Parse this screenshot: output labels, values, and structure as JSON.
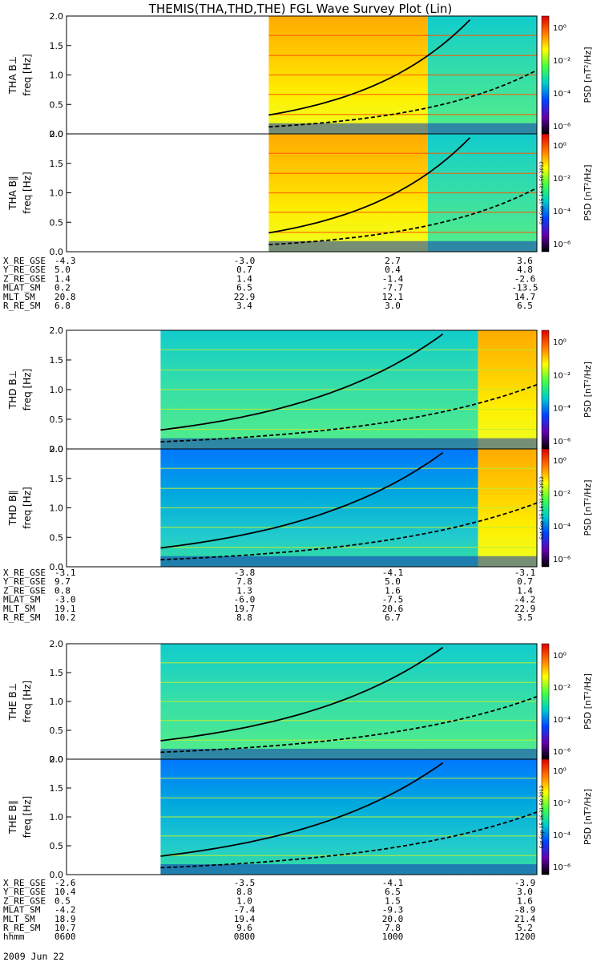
{
  "title": "THEMIS(THA,THD,THE) FGL Wave Survey Plot (Lin)",
  "chart_data": {
    "type": "heatmap",
    "title": "THEMIS(THA,THD,THE) FGL Wave Survey Plot (Lin)",
    "ylabel": "freq [Hz]",
    "ylim": [
      0,
      2.0
    ],
    "yticks": [
      "0.0",
      "0.5",
      "1.0",
      "1.5",
      "2.0"
    ],
    "colorbar_label": "PSD [nT²/Hz]",
    "colorbar_ticks": [
      "10⁰",
      "10⁻²",
      "10⁻⁴",
      "10⁻⁶"
    ],
    "colorbar_colors": [
      "#dd0000",
      "#ff7700",
      "#ffff00",
      "#44ff44",
      "#00cccc",
      "#0044ff",
      "#6600aa",
      "#000000"
    ],
    "stamp": "Sat Sep 15 16:31:50 2012",
    "panels": [
      {
        "probe": "THA",
        "component": "THA B⊥",
        "data_start_frac": 0.43,
        "band_change_frac": 0.768,
        "level": "high"
      },
      {
        "probe": "THA",
        "component": "THA B∥",
        "data_start_frac": 0.43,
        "band_change_frac": 0.768,
        "level": "high"
      },
      {
        "probe": "THD",
        "component": "THD B⊥",
        "data_start_frac": 0.2,
        "band_change_frac": 0.875,
        "level": "mid"
      },
      {
        "probe": "THD",
        "component": "THD B∥",
        "data_start_frac": 0.2,
        "band_change_frac": 0.875,
        "level": "low"
      },
      {
        "probe": "THE",
        "component": "THE B⊥",
        "data_start_frac": 0.2,
        "band_change_frac": 1.0,
        "level": "mid"
      },
      {
        "probe": "THE",
        "component": "THE B∥",
        "data_start_frac": 0.2,
        "band_change_frac": 1.0,
        "level": "low"
      }
    ],
    "ephemeris": [
      {
        "probe": "THA",
        "rows": [
          {
            "label": "X_RE_GSE",
            "values": [
              "-4.3",
              "-3.0",
              "2.7",
              "3.6"
            ]
          },
          {
            "label": "Y_RE_GSE",
            "values": [
              "5.0",
              "0.7",
              "0.4",
              "4.8"
            ]
          },
          {
            "label": "Z_RE_GSE",
            "values": [
              "1.4",
              "1.4",
              "-1.4",
              "-2.6"
            ]
          },
          {
            "label": "MLAT_SM",
            "values": [
              "0.2",
              "6.5",
              "-7.7",
              "-13.5"
            ]
          },
          {
            "label": "MLT_SM",
            "values": [
              "20.8",
              "22.9",
              "12.1",
              "14.7"
            ]
          },
          {
            "label": "R_RE_SM",
            "values": [
              "6.8",
              "3.4",
              "3.0",
              "6.5"
            ]
          }
        ]
      },
      {
        "probe": "THD",
        "rows": [
          {
            "label": "X_RE_GSE",
            "values": [
              "-3.1",
              "-3.8",
              "-4.1",
              "-3.1"
            ]
          },
          {
            "label": "Y_RE_GSE",
            "values": [
              "9.7",
              "7.8",
              "5.0",
              "0.7"
            ]
          },
          {
            "label": "Z_RE_GSE",
            "values": [
              "0.8",
              "1.3",
              "1.6",
              "1.4"
            ]
          },
          {
            "label": "MLAT_SM",
            "values": [
              "-3.0",
              "-6.0",
              "-7.5",
              "-4.2"
            ]
          },
          {
            "label": "MLT_SM",
            "values": [
              "19.1",
              "19.7",
              "20.6",
              "22.9"
            ]
          },
          {
            "label": "R_RE_SM",
            "values": [
              "10.2",
              "8.8",
              "6.7",
              "3.5"
            ]
          }
        ]
      },
      {
        "probe": "THE",
        "rows": [
          {
            "label": "X_RE_GSE",
            "values": [
              "-2.6",
              "-3.5",
              "-4.1",
              "-3.9"
            ]
          },
          {
            "label": "Y_RE_GSE",
            "values": [
              "10.4",
              "8.8",
              "6.5",
              "3.0"
            ]
          },
          {
            "label": "Z_RE_GSE",
            "values": [
              "0.5",
              "1.0",
              "1.5",
              "1.6"
            ]
          },
          {
            "label": "MLAT_SM",
            "values": [
              "-4.2",
              "-7.4",
              "-9.3",
              "-8.9"
            ]
          },
          {
            "label": "MLT_SM",
            "values": [
              "18.9",
              "19.4",
              "20.0",
              "21.4"
            ]
          },
          {
            "label": "R_RE_SM",
            "values": [
              "10.7",
              "9.6",
              "7.8",
              "5.2"
            ]
          },
          {
            "label": "hhmm",
            "values": [
              "0600",
              "0800",
              "1000",
              "1200"
            ]
          }
        ]
      }
    ],
    "date_label": "2009 Jun 22"
  }
}
